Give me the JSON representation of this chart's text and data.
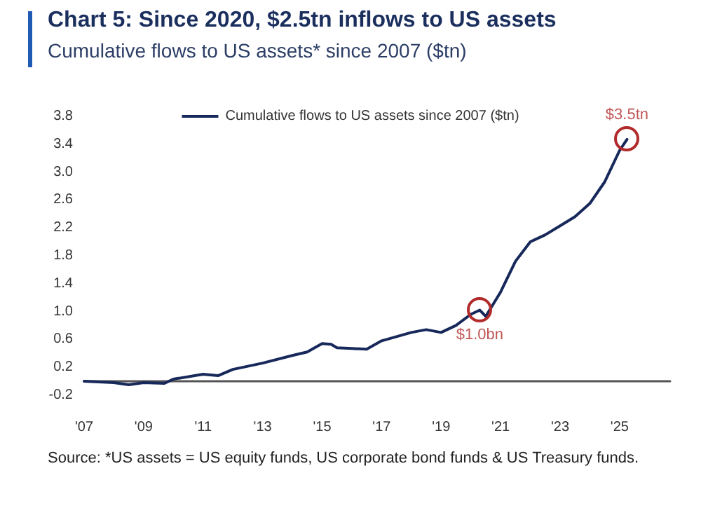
{
  "chart_data": {
    "type": "line",
    "title": "Chart 5: Since 2020, $2.5tn inflows to US assets",
    "subtitle": "Cumulative flows to US assets* since 2007 ($tn)",
    "series": [
      {
        "name": "Cumulative flows to US assets since 2007 ($tn)",
        "color": "#17285a",
        "x": [
          2007,
          2008,
          2008.5,
          2009,
          2009.7,
          2010,
          2011,
          2011.5,
          2012,
          2013,
          2014,
          2014.5,
          2015,
          2015.3,
          2015.5,
          2016,
          2016.5,
          2017,
          2018,
          2018.5,
          2019,
          2019.5,
          2020,
          2020.3,
          2020.5,
          2021,
          2021.5,
          2022,
          2022.5,
          2023,
          2023.5,
          2024,
          2024.5,
          2025,
          2025.25
        ],
        "values": [
          0.0,
          -0.02,
          -0.05,
          -0.02,
          -0.03,
          0.03,
          0.1,
          0.08,
          0.17,
          0.26,
          0.37,
          0.42,
          0.54,
          0.53,
          0.48,
          0.47,
          0.46,
          0.58,
          0.7,
          0.74,
          0.7,
          0.8,
          0.96,
          1.02,
          0.93,
          1.28,
          1.72,
          2.0,
          2.1,
          2.23,
          2.36,
          2.55,
          2.86,
          3.31,
          3.47
        ]
      }
    ],
    "xlim": [
      2007,
      2026.7
    ],
    "xticks": [
      {
        "value": 2007,
        "label": "'07"
      },
      {
        "value": 2009,
        "label": "'09"
      },
      {
        "value": 2011,
        "label": "'11"
      },
      {
        "value": 2013,
        "label": "'13"
      },
      {
        "value": 2015,
        "label": "'15"
      },
      {
        "value": 2017,
        "label": "'17"
      },
      {
        "value": 2019,
        "label": "'19"
      },
      {
        "value": 2021,
        "label": "'21"
      },
      {
        "value": 2023,
        "label": "'23"
      },
      {
        "value": 2025,
        "label": "'25"
      }
    ],
    "ylim": [
      -0.2,
      3.8
    ],
    "yticks": [
      -0.2,
      0.2,
      0.6,
      {
        "value": 1,
        "label": "1.0"
      },
      1.4,
      1.8,
      2.2,
      2.6,
      {
        "value": 3,
        "label": "3.0"
      },
      3.4,
      3.8
    ],
    "annotations": [
      {
        "text": "$1.0bn",
        "x": 2020.3,
        "y": 1.02
      },
      {
        "text": "$3.5tn",
        "x": 2025.25,
        "y": 3.47
      },
      "Source: *US assets = US equity funds, US corporate bond funds & US Treasury funds."
    ],
    "legend": "top",
    "grid": false,
    "marker": "none",
    "line_style": "solid"
  }
}
